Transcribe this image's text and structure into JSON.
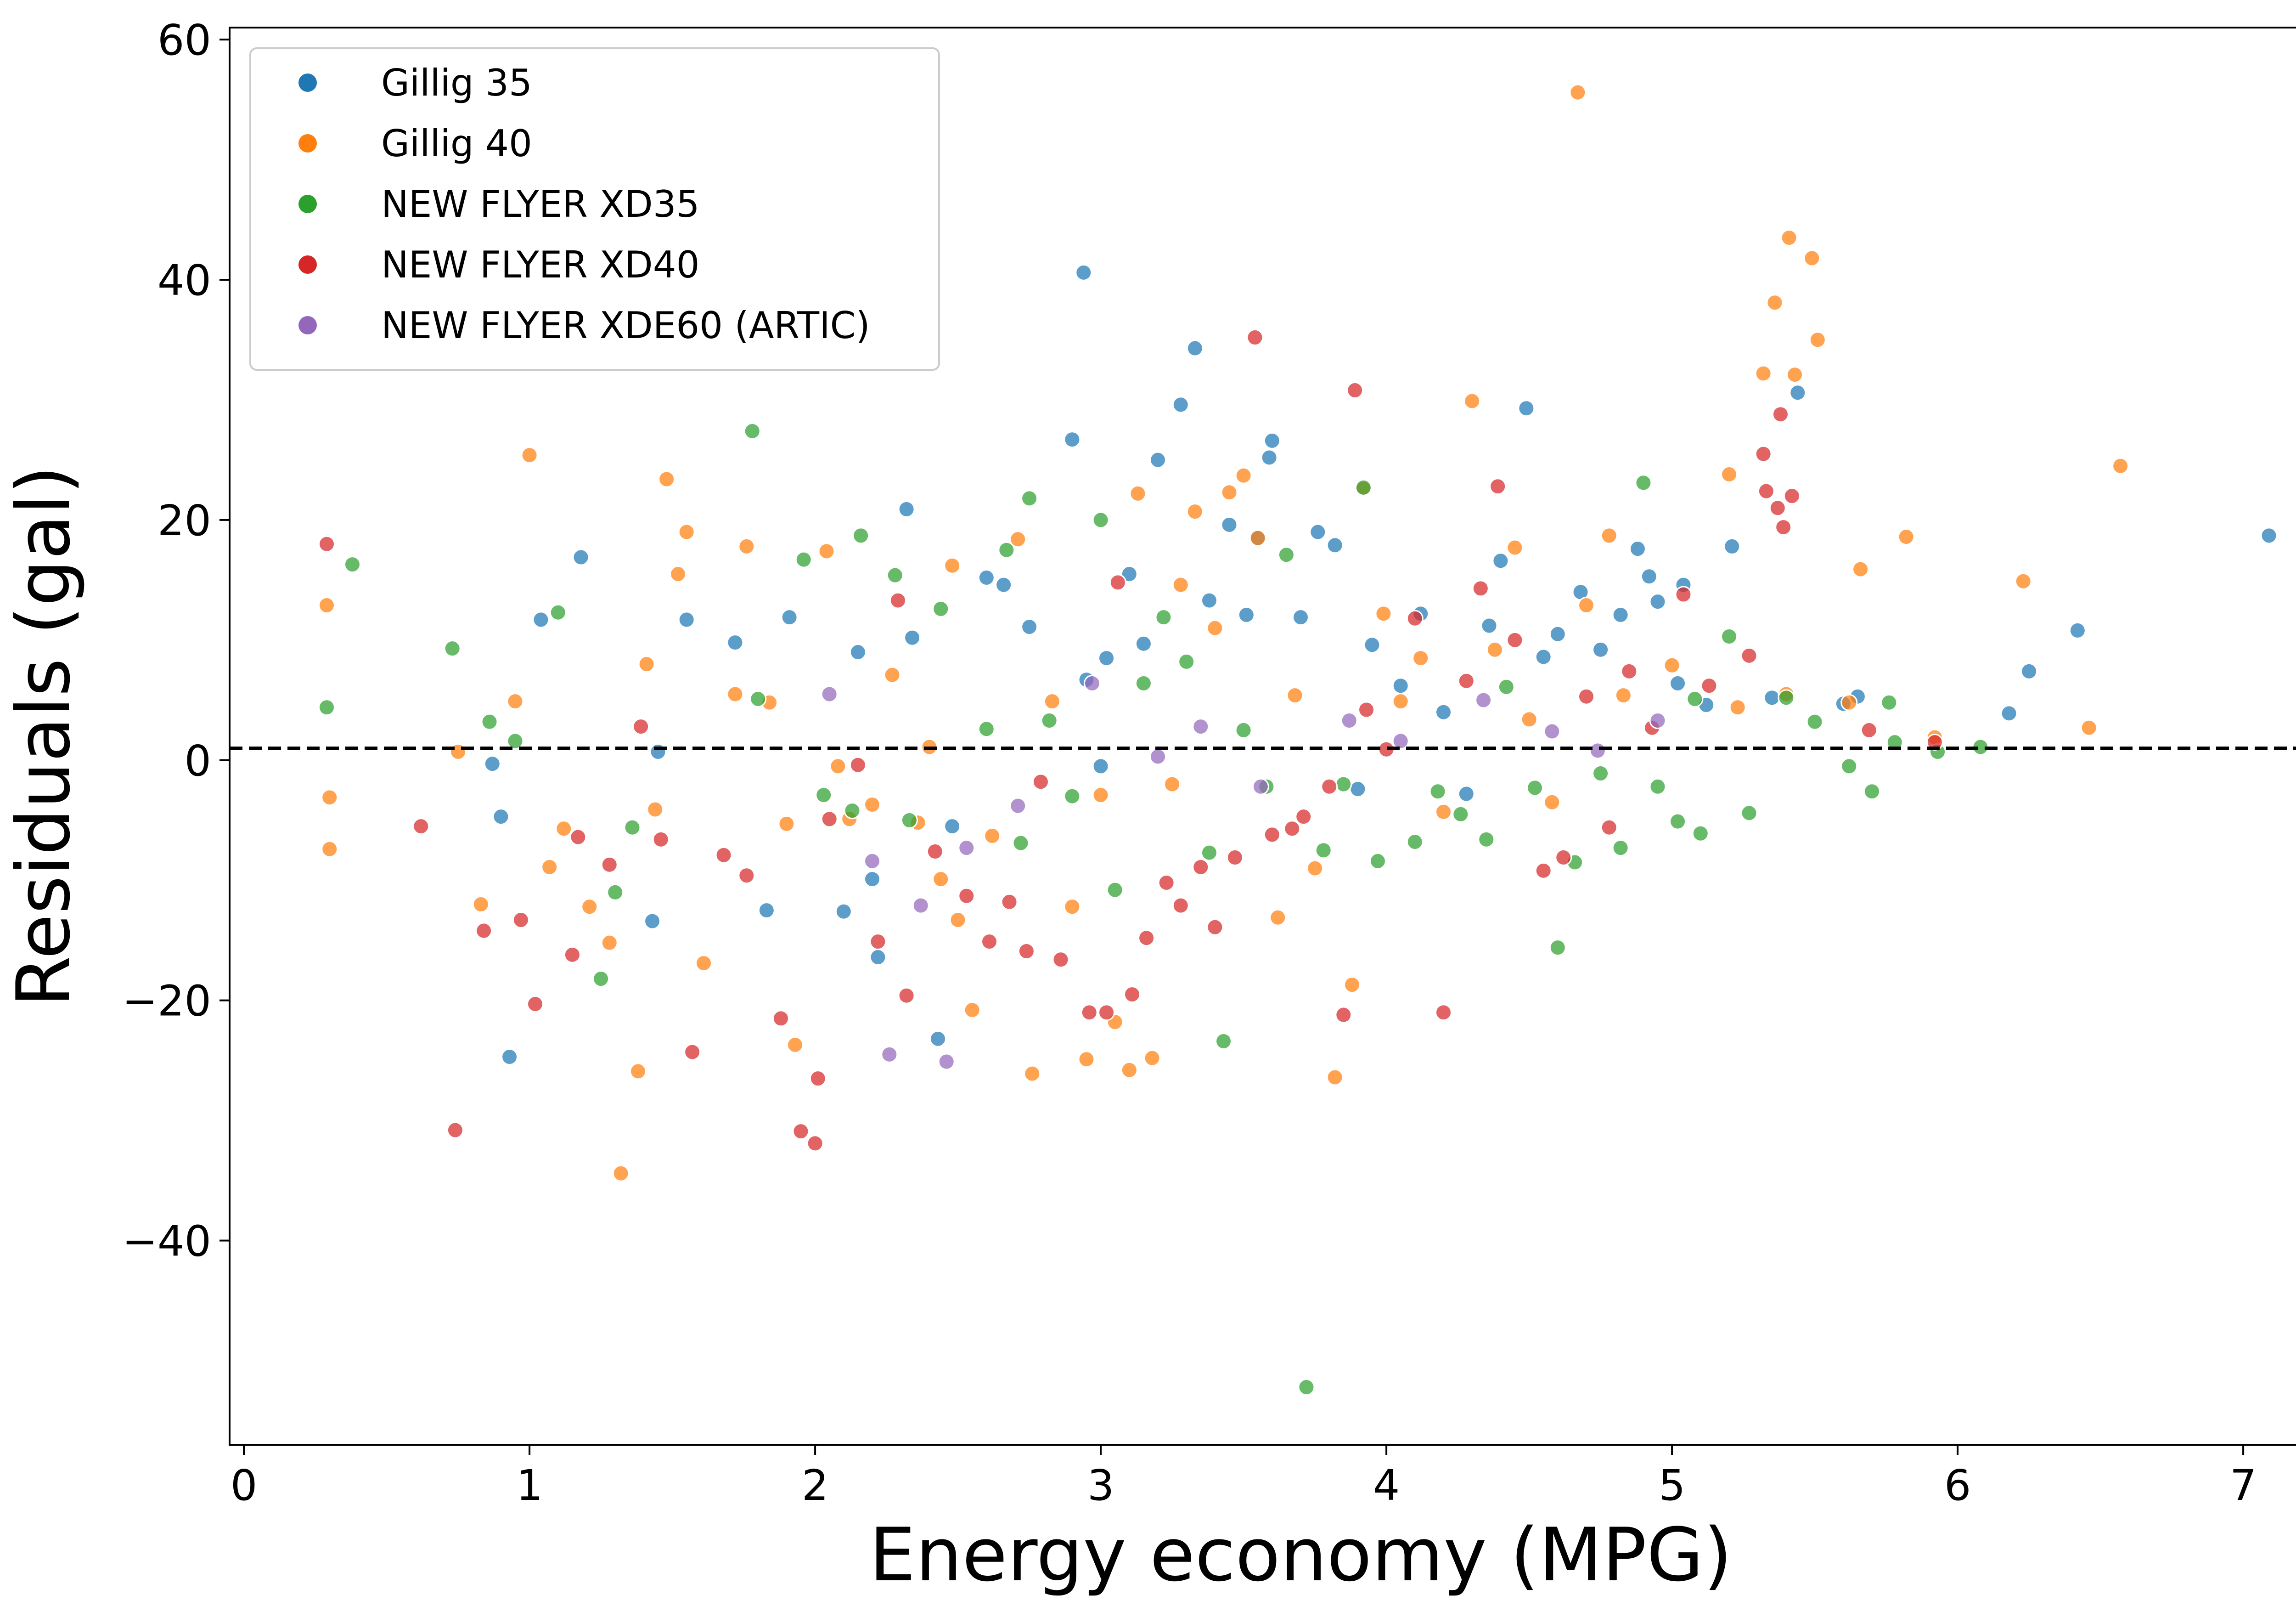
{
  "chart_data": {
    "type": "scatter",
    "title": "",
    "xlabel": "Energy economy (MPG)",
    "ylabel": "Residuals (gal)",
    "xlim": [
      -0.05,
      7.45
    ],
    "ylim": [
      -57,
      61
    ],
    "x_ticks": [
      0,
      1,
      2,
      3,
      4,
      5,
      6,
      7
    ],
    "y_ticks": [
      -40,
      -20,
      0,
      20,
      40,
      60
    ],
    "grid": false,
    "legend_position": "top-left",
    "reference_line": {
      "y": 1.0,
      "style": "dashed",
      "color": "#000000"
    },
    "series": [
      {
        "name": "Gillig 35",
        "color": "#1f77b4",
        "points": [
          [
            0.87,
            -0.3
          ],
          [
            0.9,
            -4.7
          ],
          [
            0.93,
            -24.7
          ],
          [
            1.04,
            11.7
          ],
          [
            1.18,
            16.9
          ],
          [
            1.43,
            -13.4
          ],
          [
            1.45,
            0.7
          ],
          [
            1.55,
            11.7
          ],
          [
            1.72,
            9.8
          ],
          [
            1.83,
            -12.5
          ],
          [
            1.91,
            11.9
          ],
          [
            2.1,
            -12.6
          ],
          [
            2.15,
            9.0
          ],
          [
            2.2,
            -9.9
          ],
          [
            2.22,
            -16.4
          ],
          [
            2.32,
            20.9
          ],
          [
            2.34,
            10.2
          ],
          [
            2.43,
            -23.2
          ],
          [
            2.48,
            -5.5
          ],
          [
            2.6,
            15.2
          ],
          [
            2.66,
            14.6
          ],
          [
            2.75,
            11.1
          ],
          [
            2.9,
            26.7
          ],
          [
            2.94,
            40.6
          ],
          [
            2.95,
            6.7
          ],
          [
            3.0,
            -0.5
          ],
          [
            3.02,
            8.5
          ],
          [
            3.1,
            15.5
          ],
          [
            3.15,
            9.7
          ],
          [
            3.2,
            25.0
          ],
          [
            3.28,
            29.6
          ],
          [
            3.33,
            34.3
          ],
          [
            3.38,
            13.3
          ],
          [
            3.45,
            19.6
          ],
          [
            3.51,
            12.1
          ],
          [
            3.55,
            18.5
          ],
          [
            3.59,
            25.2
          ],
          [
            3.6,
            26.6
          ],
          [
            3.7,
            11.9
          ],
          [
            3.76,
            19.0
          ],
          [
            3.82,
            17.9
          ],
          [
            3.9,
            -2.4
          ],
          [
            3.95,
            9.6
          ],
          [
            4.05,
            6.2
          ],
          [
            4.12,
            12.2
          ],
          [
            4.2,
            4.0
          ],
          [
            4.28,
            -2.8
          ],
          [
            4.36,
            11.2
          ],
          [
            4.4,
            16.6
          ],
          [
            4.49,
            29.3
          ],
          [
            4.55,
            8.6
          ],
          [
            4.6,
            10.5
          ],
          [
            4.68,
            14.0
          ],
          [
            4.75,
            9.2
          ],
          [
            4.82,
            12.1
          ],
          [
            4.88,
            17.6
          ],
          [
            4.92,
            15.3
          ],
          [
            4.95,
            13.2
          ],
          [
            5.02,
            6.4
          ],
          [
            5.04,
            14.6
          ],
          [
            5.12,
            4.6
          ],
          [
            5.21,
            17.8
          ],
          [
            5.35,
            5.2
          ],
          [
            5.44,
            30.6
          ],
          [
            5.6,
            4.7
          ],
          [
            5.65,
            5.3
          ],
          [
            6.18,
            3.9
          ],
          [
            6.25,
            7.4
          ],
          [
            6.42,
            10.8
          ],
          [
            7.09,
            18.7
          ]
        ]
      },
      {
        "name": "Gillig 40",
        "color": "#ff7f0e",
        "points": [
          [
            0.29,
            12.9
          ],
          [
            0.3,
            -3.1
          ],
          [
            0.3,
            -7.4
          ],
          [
            0.75,
            0.7
          ],
          [
            0.83,
            -12.0
          ],
          [
            0.95,
            4.9
          ],
          [
            1.0,
            25.4
          ],
          [
            1.07,
            -8.9
          ],
          [
            1.12,
            -5.7
          ],
          [
            1.21,
            -12.2
          ],
          [
            1.28,
            -15.2
          ],
          [
            1.32,
            -34.4
          ],
          [
            1.38,
            -25.9
          ],
          [
            1.41,
            8.0
          ],
          [
            1.44,
            -4.1
          ],
          [
            1.48,
            23.4
          ],
          [
            1.52,
            15.5
          ],
          [
            1.55,
            19.0
          ],
          [
            1.61,
            -16.9
          ],
          [
            1.72,
            5.5
          ],
          [
            1.76,
            17.8
          ],
          [
            1.84,
            4.8
          ],
          [
            1.9,
            -5.3
          ],
          [
            1.93,
            -23.7
          ],
          [
            2.04,
            17.4
          ],
          [
            2.08,
            -0.5
          ],
          [
            2.12,
            -4.9
          ],
          [
            2.2,
            -3.7
          ],
          [
            2.27,
            7.1
          ],
          [
            2.36,
            -5.2
          ],
          [
            2.4,
            1.1
          ],
          [
            2.44,
            -9.9
          ],
          [
            2.48,
            16.2
          ],
          [
            2.5,
            -13.3
          ],
          [
            2.55,
            -20.8
          ],
          [
            2.62,
            -6.3
          ],
          [
            2.71,
            18.4
          ],
          [
            2.76,
            -26.1
          ],
          [
            2.83,
            4.9
          ],
          [
            2.9,
            -12.2
          ],
          [
            2.95,
            -24.9
          ],
          [
            3.0,
            -2.9
          ],
          [
            3.05,
            -21.8
          ],
          [
            3.1,
            -25.8
          ],
          [
            3.13,
            22.2
          ],
          [
            3.18,
            -24.8
          ],
          [
            3.25,
            -2.0
          ],
          [
            3.28,
            14.6
          ],
          [
            3.33,
            20.7
          ],
          [
            3.4,
            11.0
          ],
          [
            3.45,
            22.3
          ],
          [
            3.5,
            23.7
          ],
          [
            3.55,
            18.5
          ],
          [
            3.62,
            -13.1
          ],
          [
            3.68,
            5.4
          ],
          [
            3.75,
            -9.0
          ],
          [
            3.82,
            -26.4
          ],
          [
            3.88,
            -18.7
          ],
          [
            3.92,
            22.6
          ],
          [
            3.99,
            12.2
          ],
          [
            4.05,
            4.9
          ],
          [
            4.12,
            8.5
          ],
          [
            4.2,
            -4.3
          ],
          [
            4.3,
            29.9
          ],
          [
            4.38,
            9.2
          ],
          [
            4.45,
            17.7
          ],
          [
            4.5,
            3.4
          ],
          [
            4.58,
            -3.5
          ],
          [
            4.67,
            55.6
          ],
          [
            4.7,
            12.9
          ],
          [
            4.78,
            18.7
          ],
          [
            4.83,
            5.4
          ],
          [
            5.0,
            7.9
          ],
          [
            5.2,
            23.8
          ],
          [
            5.23,
            4.4
          ],
          [
            5.32,
            32.2
          ],
          [
            5.36,
            38.1
          ],
          [
            5.4,
            5.5
          ],
          [
            5.41,
            43.5
          ],
          [
            5.43,
            32.1
          ],
          [
            5.49,
            41.8
          ],
          [
            5.51,
            35.0
          ],
          [
            5.62,
            4.8
          ],
          [
            5.66,
            15.9
          ],
          [
            5.82,
            18.6
          ],
          [
            5.92,
            1.9
          ],
          [
            6.23,
            14.9
          ],
          [
            6.46,
            2.7
          ],
          [
            6.57,
            24.5
          ]
        ]
      },
      {
        "name": "NEW FLYER XD35",
        "color": "#2ca02c",
        "points": [
          [
            0.29,
            4.4
          ],
          [
            0.38,
            16.3
          ],
          [
            0.73,
            9.3
          ],
          [
            0.86,
            3.2
          ],
          [
            0.95,
            1.6
          ],
          [
            1.1,
            12.3
          ],
          [
            1.25,
            -18.2
          ],
          [
            1.3,
            -11.0
          ],
          [
            1.36,
            -5.6
          ],
          [
            1.78,
            27.4
          ],
          [
            1.8,
            5.1
          ],
          [
            1.96,
            16.7
          ],
          [
            2.03,
            -2.9
          ],
          [
            2.13,
            -4.2
          ],
          [
            2.16,
            18.7
          ],
          [
            2.28,
            15.4
          ],
          [
            2.33,
            -5.0
          ],
          [
            2.44,
            12.6
          ],
          [
            2.6,
            2.6
          ],
          [
            2.67,
            17.5
          ],
          [
            2.72,
            -6.9
          ],
          [
            2.75,
            21.8
          ],
          [
            2.82,
            3.3
          ],
          [
            2.9,
            -3.0
          ],
          [
            3.0,
            20.0
          ],
          [
            3.05,
            -10.8
          ],
          [
            3.15,
            6.4
          ],
          [
            3.22,
            11.9
          ],
          [
            3.3,
            8.2
          ],
          [
            3.38,
            -7.7
          ],
          [
            3.43,
            -23.4
          ],
          [
            3.5,
            2.5
          ],
          [
            3.58,
            -2.2
          ],
          [
            3.65,
            17.1
          ],
          [
            3.72,
            -52.2
          ],
          [
            3.78,
            -7.5
          ],
          [
            3.85,
            -2.0
          ],
          [
            3.92,
            22.7
          ],
          [
            3.97,
            -8.4
          ],
          [
            4.1,
            -6.8
          ],
          [
            4.18,
            -2.6
          ],
          [
            4.26,
            -4.5
          ],
          [
            4.35,
            -6.6
          ],
          [
            4.42,
            6.1
          ],
          [
            4.52,
            -2.3
          ],
          [
            4.6,
            -15.6
          ],
          [
            4.66,
            -8.5
          ],
          [
            4.75,
            -1.1
          ],
          [
            4.82,
            -7.3
          ],
          [
            4.9,
            23.1
          ],
          [
            4.95,
            -2.2
          ],
          [
            5.02,
            -5.1
          ],
          [
            5.08,
            5.1
          ],
          [
            5.1,
            -6.1
          ],
          [
            5.2,
            10.3
          ],
          [
            5.27,
            -4.4
          ],
          [
            5.4,
            5.2
          ],
          [
            5.5,
            3.2
          ],
          [
            5.62,
            -0.5
          ],
          [
            5.7,
            -2.6
          ],
          [
            5.76,
            4.8
          ],
          [
            5.78,
            1.5
          ],
          [
            5.93,
            0.7
          ],
          [
            6.08,
            1.1
          ]
        ]
      },
      {
        "name": "NEW FLYER XD40",
        "color": "#d62728",
        "points": [
          [
            0.29,
            18.0
          ],
          [
            0.62,
            -5.5
          ],
          [
            0.74,
            -30.8
          ],
          [
            0.84,
            -14.2
          ],
          [
            0.97,
            -13.3
          ],
          [
            1.02,
            -20.3
          ],
          [
            1.15,
            -16.2
          ],
          [
            1.17,
            -6.4
          ],
          [
            1.28,
            -8.7
          ],
          [
            1.39,
            2.8
          ],
          [
            1.46,
            -6.6
          ],
          [
            1.57,
            -24.3
          ],
          [
            1.68,
            -7.9
          ],
          [
            1.76,
            -9.6
          ],
          [
            1.88,
            -21.5
          ],
          [
            1.95,
            -30.9
          ],
          [
            2.0,
            -31.9
          ],
          [
            2.01,
            -26.5
          ],
          [
            2.05,
            -4.9
          ],
          [
            2.15,
            -0.4
          ],
          [
            2.22,
            -15.1
          ],
          [
            2.29,
            13.3
          ],
          [
            2.32,
            -19.6
          ],
          [
            2.42,
            -7.6
          ],
          [
            2.53,
            -11.3
          ],
          [
            2.61,
            -15.1
          ],
          [
            2.68,
            -11.8
          ],
          [
            2.74,
            -15.9
          ],
          [
            2.79,
            -1.8
          ],
          [
            2.86,
            -16.6
          ],
          [
            2.96,
            -21.0
          ],
          [
            3.02,
            -21.0
          ],
          [
            3.06,
            14.8
          ],
          [
            3.11,
            -19.5
          ],
          [
            3.16,
            -14.8
          ],
          [
            3.23,
            -10.2
          ],
          [
            3.28,
            -12.1
          ],
          [
            3.35,
            -8.9
          ],
          [
            3.4,
            -13.9
          ],
          [
            3.47,
            -8.1
          ],
          [
            3.54,
            35.2
          ],
          [
            3.6,
            -6.2
          ],
          [
            3.67,
            -5.7
          ],
          [
            3.71,
            -4.7
          ],
          [
            3.8,
            -2.2
          ],
          [
            3.85,
            -21.2
          ],
          [
            3.89,
            30.8
          ],
          [
            3.93,
            4.2
          ],
          [
            4.0,
            0.9
          ],
          [
            4.1,
            11.8
          ],
          [
            4.2,
            -21.0
          ],
          [
            4.28,
            6.6
          ],
          [
            4.33,
            14.3
          ],
          [
            4.39,
            22.8
          ],
          [
            4.45,
            10.0
          ],
          [
            4.55,
            -9.2
          ],
          [
            4.62,
            -8.1
          ],
          [
            4.7,
            5.3
          ],
          [
            4.78,
            -5.6
          ],
          [
            4.85,
            7.4
          ],
          [
            4.93,
            2.7
          ],
          [
            5.04,
            13.8
          ],
          [
            5.13,
            6.2
          ],
          [
            5.27,
            8.7
          ],
          [
            5.32,
            25.5
          ],
          [
            5.33,
            22.4
          ],
          [
            5.37,
            21.0
          ],
          [
            5.38,
            28.8
          ],
          [
            5.39,
            19.4
          ],
          [
            5.42,
            22.0
          ],
          [
            5.69,
            2.5
          ],
          [
            5.92,
            1.5
          ]
        ]
      },
      {
        "name": "NEW FLYER XDE60 (ARTIC)",
        "color": "#9467bd",
        "points": [
          [
            2.05,
            5.5
          ],
          [
            2.2,
            -8.4
          ],
          [
            2.26,
            -24.5
          ],
          [
            2.37,
            -12.1
          ],
          [
            2.46,
            -25.1
          ],
          [
            2.53,
            -7.3
          ],
          [
            2.71,
            -3.8
          ],
          [
            2.97,
            6.4
          ],
          [
            3.2,
            0.3
          ],
          [
            3.35,
            2.8
          ],
          [
            3.56,
            -2.2
          ],
          [
            3.87,
            3.3
          ],
          [
            4.05,
            1.6
          ],
          [
            4.34,
            5.0
          ],
          [
            4.58,
            2.4
          ],
          [
            4.74,
            0.8
          ],
          [
            4.95,
            3.3
          ]
        ]
      }
    ]
  }
}
